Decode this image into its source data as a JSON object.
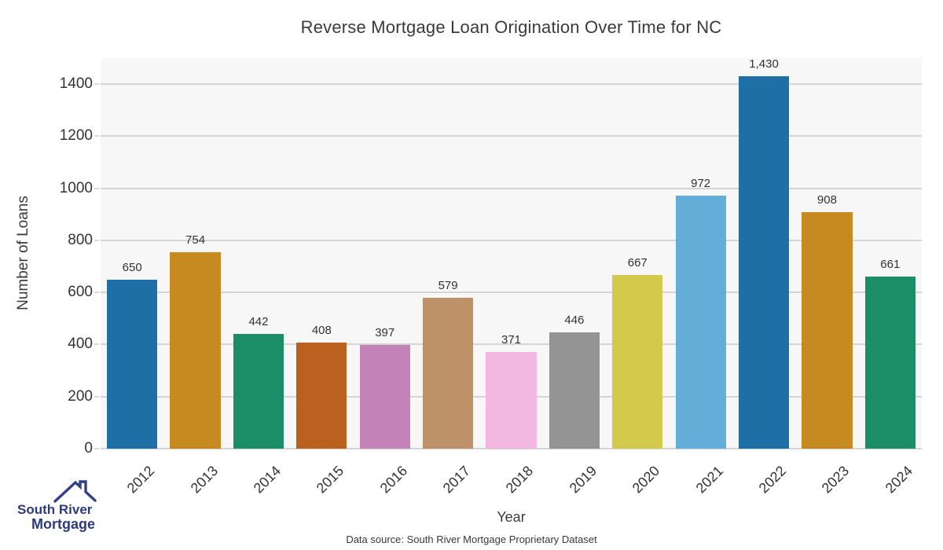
{
  "chart_data": {
    "type": "bar",
    "title": "Reverse Mortgage Loan Origination Over Time for NC",
    "xlabel": "Year",
    "ylabel": "Number of Loans",
    "categories": [
      "2012",
      "2013",
      "2014",
      "2015",
      "2016",
      "2017",
      "2018",
      "2019",
      "2020",
      "2021",
      "2022",
      "2023",
      "2024"
    ],
    "values": [
      650,
      754,
      442,
      408,
      397,
      579,
      371,
      446,
      667,
      972,
      1430,
      908,
      661
    ],
    "value_labels": [
      "650",
      "754",
      "442",
      "408",
      "397",
      "579",
      "371",
      "446",
      "667",
      "972",
      "1,430",
      "908",
      "661"
    ],
    "bar_colors": [
      "#1e6fa5",
      "#c68a20",
      "#1b8e68",
      "#bb611f",
      "#c383b8",
      "#bd9269",
      "#f2b8e0",
      "#949494",
      "#d3c94b",
      "#63aed8",
      "#1e6fa5",
      "#c68a20",
      "#1b8e68"
    ],
    "ylim": [
      0,
      1500
    ],
    "yticks": [
      0,
      200,
      400,
      600,
      800,
      1000,
      1200,
      1400
    ],
    "grid": "horizontal",
    "legend": "none"
  },
  "footer": {
    "data_source": "Data source: South River Mortgage Proprietary Dataset"
  },
  "logo": {
    "line1": "South River",
    "line2": "Mortgage",
    "icon": "house-roof-icon",
    "text_color": "#2d3a80",
    "roof_color": "#334089"
  },
  "colors": {
    "figure_background": "#ffffff",
    "plot_background": "#f7f7f7",
    "gridline": "#d4d4d4",
    "text": "#3a3a3a"
  }
}
